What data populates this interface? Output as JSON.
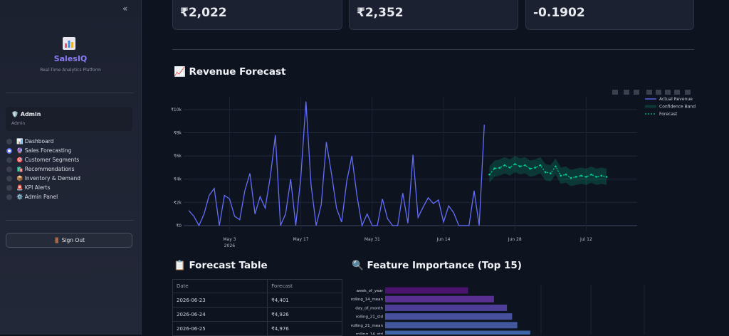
{
  "sidebar": {
    "brand": "SalesIQ",
    "tagline": "Real-Time Analytics Platform",
    "user_name": "🛡️ Admin",
    "user_role": "Admin",
    "nav": [
      "📊 Dashboard",
      "🔮 Sales Forecasting",
      "🎯 Customer Segments",
      "🛍️ Recommendations",
      "📦 Inventory & Demand",
      "🚨 KPI Alerts",
      "⚙️ Admin Panel"
    ],
    "sign_out": "🚪 Sign Out"
  },
  "metrics": [
    "₹2,022",
    "₹2,352",
    "-0.1902"
  ],
  "sections": {
    "forecast": "📈 Revenue Forecast",
    "table": "📋 Forecast Table",
    "importance": "🔍 Feature Importance (Top 15)"
  },
  "table": {
    "header": [
      "Date",
      "Forecast"
    ],
    "rows": [
      [
        "2026-06-23",
        "₹4,401"
      ],
      [
        "2026-06-24",
        "₹4,926"
      ],
      [
        "2026-06-25",
        "₹4,976"
      ]
    ]
  },
  "chart_data": [
    {
      "type": "line",
      "xlim": [
        "2026-04-24",
        "2026-07-22"
      ],
      "xticks": [
        {
          "value": "2026-05-03",
          "label": "May 3"
        },
        {
          "value": "2026-05-17",
          "label": "May 17"
        },
        {
          "value": "2026-05-31",
          "label": "May 31"
        },
        {
          "value": "2026-06-14",
          "label": "Jun 14"
        },
        {
          "value": "2026-06-28",
          "label": "Jun 28"
        },
        {
          "value": "2026-07-12",
          "label": "Jul 12"
        }
      ],
      "x_year_label": "2026",
      "ylim": [
        -500,
        11100
      ],
      "yticks": [
        {
          "value": 0,
          "label": "₹0"
        },
        {
          "value": 2000,
          "label": "₹2k"
        },
        {
          "value": 4000,
          "label": "₹4k"
        },
        {
          "value": 6000,
          "label": "₹6k"
        },
        {
          "value": 8000,
          "label": "₹8k"
        },
        {
          "value": 10000,
          "label": "₹10k"
        }
      ],
      "grid": true,
      "legend": "top-right",
      "series": [
        {
          "name": "Actual Revenue",
          "color": "#636efa",
          "x": [
            "2026-04-25",
            "2026-04-26",
            "2026-04-27",
            "2026-04-28",
            "2026-04-29",
            "2026-04-30",
            "2026-05-01",
            "2026-05-02",
            "2026-05-03",
            "2026-05-04",
            "2026-05-05",
            "2026-05-06",
            "2026-05-07",
            "2026-05-08",
            "2026-05-09",
            "2026-05-10",
            "2026-05-11",
            "2026-05-12",
            "2026-05-13",
            "2026-05-14",
            "2026-05-15",
            "2026-05-16",
            "2026-05-17",
            "2026-05-18",
            "2026-05-19",
            "2026-05-20",
            "2026-05-21",
            "2026-05-22",
            "2026-05-23",
            "2026-05-24",
            "2026-05-25",
            "2026-05-26",
            "2026-05-27",
            "2026-05-28",
            "2026-05-29",
            "2026-05-30",
            "2026-05-31",
            "2026-06-01",
            "2026-06-02",
            "2026-06-03",
            "2026-06-04",
            "2026-06-05",
            "2026-06-06",
            "2026-06-07",
            "2026-06-08",
            "2026-06-09",
            "2026-06-10",
            "2026-06-11",
            "2026-06-12",
            "2026-06-13",
            "2026-06-14",
            "2026-06-15",
            "2026-06-16",
            "2026-06-17",
            "2026-06-18",
            "2026-06-19",
            "2026-06-20",
            "2026-06-21",
            "2026-06-22"
          ],
          "values": [
            1300,
            800,
            0,
            1000,
            2600,
            3200,
            0,
            2600,
            2300,
            800,
            500,
            3000,
            4500,
            1000,
            2500,
            1500,
            4200,
            7800,
            0,
            1000,
            4000,
            0,
            4200,
            10700,
            3500,
            0,
            1800,
            7200,
            4500,
            1500,
            300,
            3800,
            6000,
            2600,
            0,
            1000,
            0,
            0,
            2300,
            600,
            0,
            0,
            2800,
            200,
            6100,
            700,
            1600,
            2400,
            1900,
            2200,
            300,
            1700,
            1100,
            0,
            0,
            0,
            3000,
            0,
            8700
          ]
        },
        {
          "name": "Confidence Band",
          "color": "#00cc96",
          "x": [
            "2026-06-23",
            "2026-06-24",
            "2026-06-25",
            "2026-06-26",
            "2026-06-27",
            "2026-06-28",
            "2026-06-29",
            "2026-06-30",
            "2026-07-01",
            "2026-07-02",
            "2026-07-03",
            "2026-07-04",
            "2026-07-05",
            "2026-07-06",
            "2026-07-07",
            "2026-07-08",
            "2026-07-09",
            "2026-07-10",
            "2026-07-11",
            "2026-07-12",
            "2026-07-13",
            "2026-07-14",
            "2026-07-15",
            "2026-07-16"
          ],
          "upper": [
            5100,
            5600,
            5700,
            5900,
            5700,
            6000,
            5800,
            5900,
            5600,
            5700,
            5900,
            5300,
            5200,
            5800,
            5000,
            5100,
            4800,
            4900,
            5000,
            4900,
            5100,
            4900,
            5000,
            4900
          ],
          "lower": [
            3700,
            4200,
            4300,
            4500,
            4300,
            4600,
            4400,
            4500,
            4200,
            4300,
            4500,
            3900,
            3800,
            4400,
            3600,
            3700,
            3400,
            3500,
            3600,
            3500,
            3700,
            3500,
            3600,
            3500
          ]
        },
        {
          "name": "Forecast",
          "color": "#00cc96",
          "x": [
            "2026-06-23",
            "2026-06-24",
            "2026-06-25",
            "2026-06-26",
            "2026-06-27",
            "2026-06-28",
            "2026-06-29",
            "2026-06-30",
            "2026-07-01",
            "2026-07-02",
            "2026-07-03",
            "2026-07-04",
            "2026-07-05",
            "2026-07-06",
            "2026-07-07",
            "2026-07-08",
            "2026-07-09",
            "2026-07-10",
            "2026-07-11",
            "2026-07-12",
            "2026-07-13",
            "2026-07-14",
            "2026-07-15",
            "2026-07-16"
          ],
          "values": [
            4401,
            4926,
            4976,
            5200,
            5000,
            5300,
            5100,
            5200,
            4900,
            5000,
            5200,
            4600,
            4500,
            5100,
            4300,
            4400,
            4100,
            4200,
            4300,
            4200,
            4400,
            4200,
            4300,
            4200
          ]
        }
      ]
    },
    {
      "type": "hbar",
      "categories": [
        "week_of_year",
        "rolling_14_mean",
        "day_of_month",
        "rolling_21_std",
        "rolling_21_mean",
        "rolling_14_std"
      ],
      "values": [
        0.032,
        0.042,
        0.047,
        0.049,
        0.051,
        0.056
      ],
      "colors": [
        "#4a136e",
        "#5a2f92",
        "#4d3f98",
        "#47509c",
        "#43589c",
        "#3e66a4"
      ],
      "xlim": [
        0,
        0.1
      ],
      "grid": true
    }
  ]
}
